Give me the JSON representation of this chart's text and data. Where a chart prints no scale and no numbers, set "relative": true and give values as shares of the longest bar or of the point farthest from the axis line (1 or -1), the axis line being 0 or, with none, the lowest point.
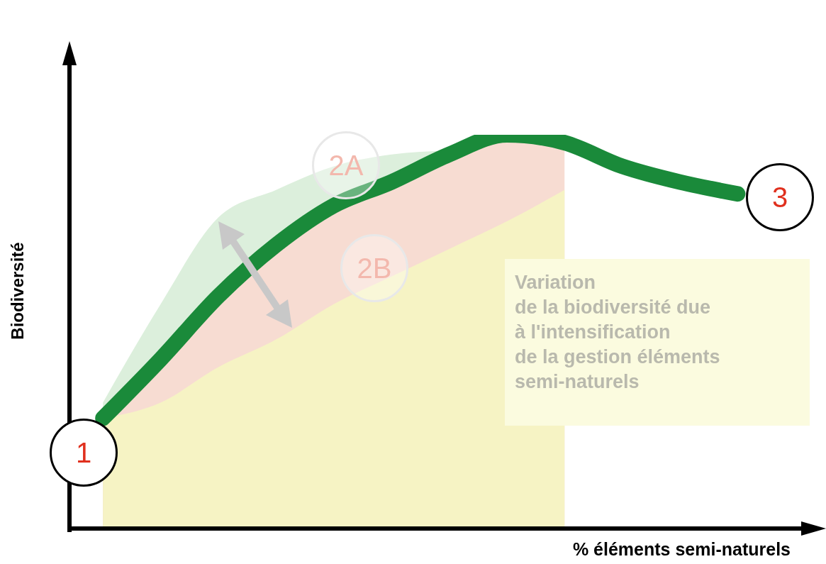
{
  "chart_data": {
    "type": "line",
    "relative": true,
    "xlabel": "% éléments semi-naturels",
    "ylabel": "Biodiversité",
    "categories": [
      null,
      null,
      null,
      null,
      null,
      null,
      null,
      null,
      null,
      null,
      null,
      null
    ],
    "series": [
      {
        "type": "area",
        "color": "#dcefdc",
        "values": [
          0.32,
          0.57,
          0.79,
          0.86,
          0.92,
          0.95,
          0.96,
          null,
          null,
          null,
          null,
          null
        ]
      },
      {
        "type": "area",
        "color": "#f7dcd2",
        "values": [
          0.28,
          0.43,
          0.59,
          0.72,
          0.82,
          0.88,
          0.95,
          1.0,
          0.98,
          null,
          null,
          null
        ]
      },
      {
        "color": "#1a8a3a",
        "values": [
          0.28,
          0.43,
          0.59,
          0.72,
          0.82,
          0.88,
          0.95,
          1.0,
          0.98,
          0.92,
          0.88,
          0.85
        ]
      },
      {
        "type": "area",
        "color": "#f6f3c4",
        "values": [
          0.28,
          0.32,
          0.41,
          0.48,
          0.57,
          0.64,
          0.71,
          0.78,
          0.86,
          null,
          null,
          null
        ]
      }
    ],
    "annotations": [
      "1",
      "2A",
      "2B",
      "3",
      "Variation\nde la biodiversité due\nà l'intensification\nde la gestion éléments\nsemi-naturels"
    ],
    "marker": "none",
    "line_style": "solid"
  }
}
